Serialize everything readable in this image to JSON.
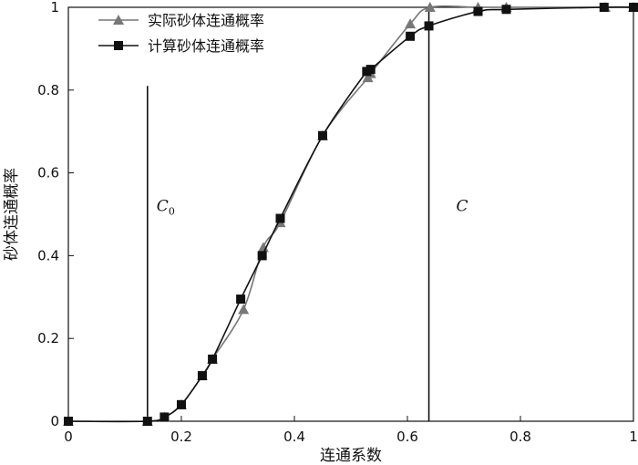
{
  "chart_data": {
    "type": "line",
    "title": "",
    "xlabel": "连通系数",
    "ylabel": "砂体连通概率",
    "xlim": [
      0,
      1
    ],
    "ylim": [
      0,
      1
    ],
    "x_ticks": [
      "0",
      "0.2",
      "0.4",
      "0.6",
      "0.8",
      "1"
    ],
    "y_ticks": [
      "0",
      "0.2",
      "0.4",
      "0.6",
      "0.8",
      "1"
    ],
    "grid": false,
    "legend_position": "top-left",
    "series": [
      {
        "name": "实际砂体连通概率",
        "marker": "triangle",
        "color": "#777777",
        "points": [
          {
            "x": 0,
            "y": 0
          },
          {
            "x": 0.14,
            "y": 0
          },
          {
            "x": 0.17,
            "y": 0.01
          },
          {
            "x": 0.2,
            "y": 0.04
          },
          {
            "x": 0.237,
            "y": 0.11
          },
          {
            "x": 0.255,
            "y": 0.15
          },
          {
            "x": 0.31,
            "y": 0.27
          },
          {
            "x": 0.345,
            "y": 0.42
          },
          {
            "x": 0.375,
            "y": 0.48
          },
          {
            "x": 0.45,
            "y": 0.69
          },
          {
            "x": 0.53,
            "y": 0.83
          },
          {
            "x": 0.535,
            "y": 0.84
          },
          {
            "x": 0.605,
            "y": 0.96
          },
          {
            "x": 0.64,
            "y": 1.0
          },
          {
            "x": 0.725,
            "y": 1.0
          },
          {
            "x": 0.775,
            "y": 1.0
          },
          {
            "x": 0.95,
            "y": 1.0
          },
          {
            "x": 1.0,
            "y": 1.0
          }
        ]
      },
      {
        "name": "计算砂体连通概率",
        "marker": "square",
        "color": "#111111",
        "points": [
          {
            "x": 0,
            "y": 0
          },
          {
            "x": 0.14,
            "y": 0
          },
          {
            "x": 0.17,
            "y": 0.01
          },
          {
            "x": 0.2,
            "y": 0.04
          },
          {
            "x": 0.237,
            "y": 0.11
          },
          {
            "x": 0.255,
            "y": 0.15
          },
          {
            "x": 0.305,
            "y": 0.295
          },
          {
            "x": 0.343,
            "y": 0.4
          },
          {
            "x": 0.375,
            "y": 0.49
          },
          {
            "x": 0.45,
            "y": 0.69
          },
          {
            "x": 0.528,
            "y": 0.845
          },
          {
            "x": 0.535,
            "y": 0.85
          },
          {
            "x": 0.605,
            "y": 0.93
          },
          {
            "x": 0.638,
            "y": 0.955
          },
          {
            "x": 0.725,
            "y": 0.99
          },
          {
            "x": 0.775,
            "y": 0.995
          },
          {
            "x": 0.948,
            "y": 1.0
          },
          {
            "x": 1.0,
            "y": 1.0
          }
        ]
      }
    ],
    "vertical_lines": [
      {
        "x": 0.14,
        "y_top": 0.81,
        "label_main": "C",
        "label_sub": "0"
      },
      {
        "x": 0.638,
        "y_top": 1.0,
        "label_main": "C",
        "label_sub": ""
      }
    ]
  }
}
